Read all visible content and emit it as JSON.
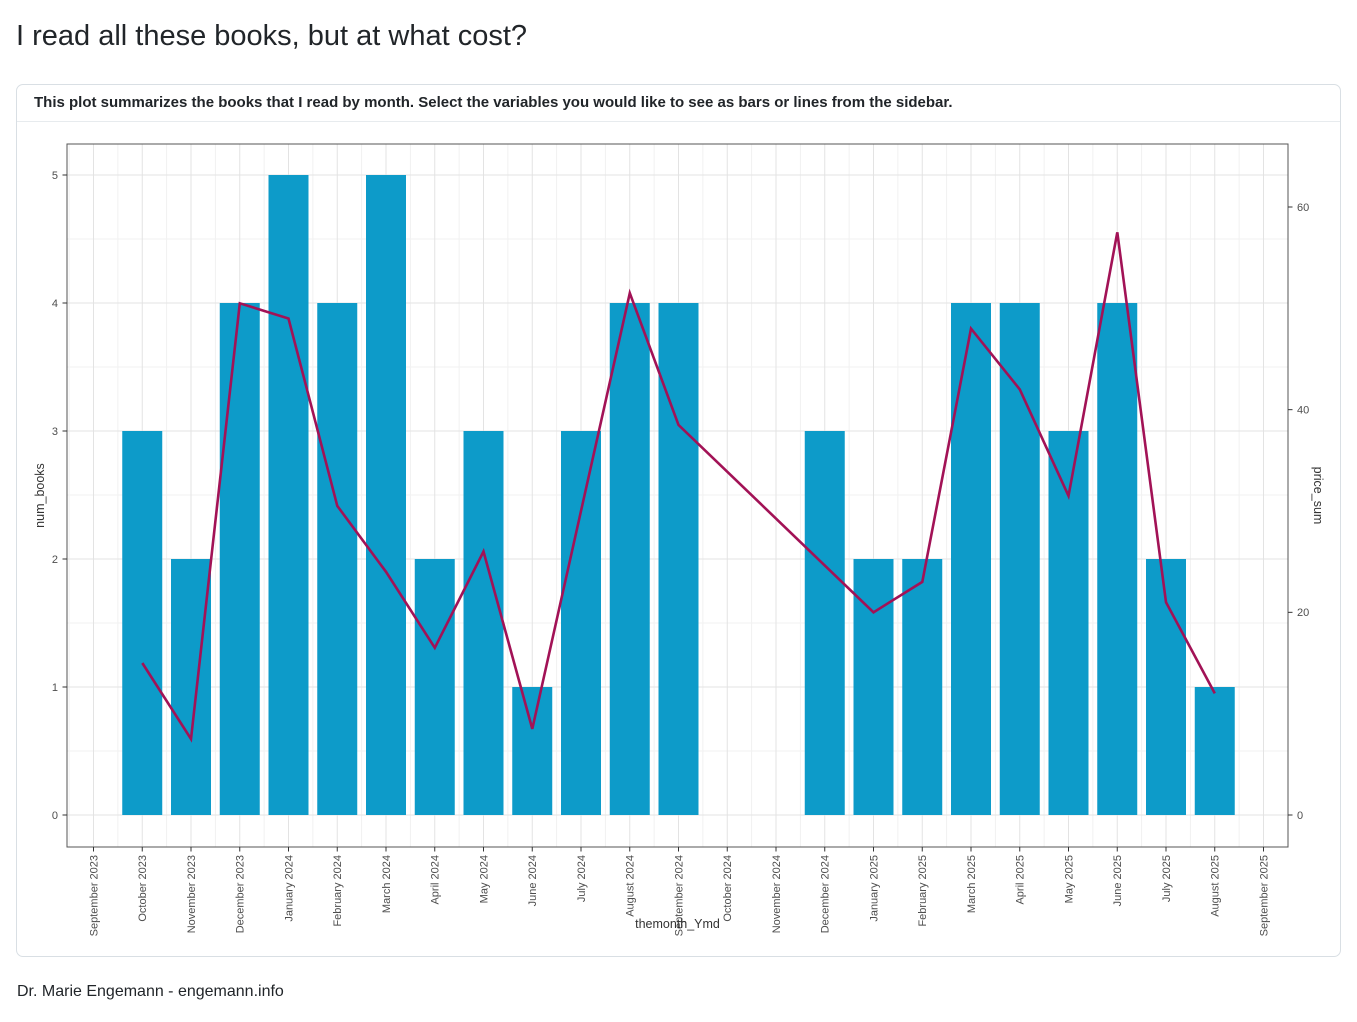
{
  "page": {
    "title": "I read all these books, but at what cost?",
    "description": "This plot summarizes the books that I read by month. Select the variables you would like to see as bars or lines from the sidebar.",
    "footer": "Dr. Marie Engemann - engemann.info"
  },
  "colors": {
    "bar_fill": "#0d9bc9",
    "line_stroke": "#a21256",
    "grid_major": "#e3e3e3",
    "grid_minor": "#f1f1f1",
    "panel_border": "#555555",
    "tick_mark": "#333333",
    "tick_label": "#4d4d4d",
    "axis_title": "#333333"
  },
  "chart_data": {
    "type": "bar",
    "title": "",
    "xlabel": "themonth_Ymd",
    "ylabel_left": "num_books",
    "ylabel_right": "price_sum",
    "grid": true,
    "legend": "none",
    "categories": [
      "September 2023",
      "October 2023",
      "November 2023",
      "December 2023",
      "January 2024",
      "February 2024",
      "March 2024",
      "April 2024",
      "May 2024",
      "June 2024",
      "July 2024",
      "August 2024",
      "September 2024",
      "October 2024",
      "November 2024",
      "December 2024",
      "January 2025",
      "February 2025",
      "March 2025",
      "April 2025",
      "May 2025",
      "June 2025",
      "July 2025",
      "August 2025",
      "September 2025"
    ],
    "series": [
      {
        "name": "num_books",
        "type": "bar",
        "axis": "left",
        "values": [
          null,
          3,
          2,
          4,
          5,
          4,
          5,
          2,
          3,
          1,
          3,
          4,
          4,
          null,
          null,
          3,
          2,
          2,
          4,
          4,
          3,
          4,
          2,
          1,
          null
        ]
      },
      {
        "name": "price_sum",
        "type": "line",
        "axis": "right",
        "values": [
          null,
          15,
          7.5,
          50.5,
          49,
          30.5,
          24,
          16.5,
          26,
          8.5,
          30,
          51.5,
          38.5,
          null,
          null,
          null,
          20,
          23,
          48,
          42,
          31.5,
          57.5,
          21,
          12,
          null
        ]
      }
    ],
    "y_left": {
      "ticks": [
        0,
        1,
        2,
        3,
        4,
        5
      ],
      "lim": [
        0,
        5.5
      ]
    },
    "y_right": {
      "ticks": [
        0,
        20,
        40,
        60
      ],
      "lim": [
        0,
        69.6
      ]
    }
  }
}
